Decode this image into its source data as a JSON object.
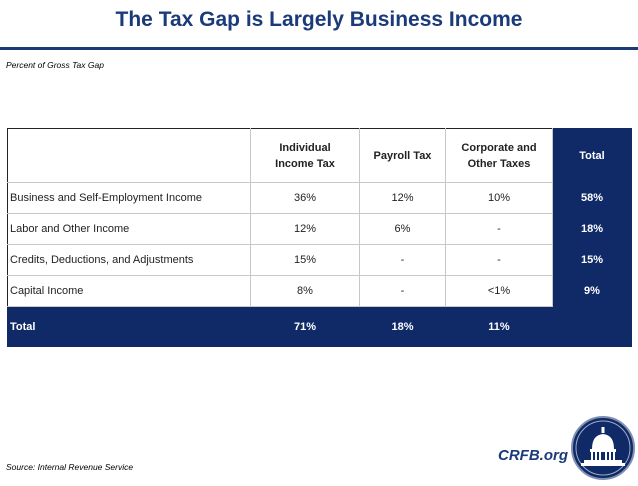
{
  "title": "The Tax Gap is Largely Business Income",
  "subtitle": "Percent of Gross Tax Gap",
  "table": {
    "headers": [
      "",
      "Individual Income Tax",
      "Payroll Tax",
      "Corporate and Other Taxes",
      "Total"
    ],
    "header_lines": {
      "h1a": "Individual",
      "h1b": "Income Tax",
      "h2": "Payroll Tax",
      "h3a": "Corporate and",
      "h3b": "Other Taxes",
      "h4": "Total"
    },
    "rows": [
      {
        "label": "Business and Self-Employment Income",
        "individual": "36%",
        "payroll": "12%",
        "corporate": "10%",
        "total": "58%"
      },
      {
        "label": "Labor and Other Income",
        "individual": "12%",
        "payroll": "6%",
        "corporate": "-",
        "total": "18%"
      },
      {
        "label": "Credits, Deductions, and Adjustments",
        "individual": "15%",
        "payroll": "-",
        "corporate": "-",
        "total": "15%"
      },
      {
        "label": "Capital Income",
        "individual": "8%",
        "payroll": "-",
        "corporate": "<1%",
        "total": "9%"
      }
    ],
    "total_row": {
      "label": "Total",
      "individual": "71%",
      "payroll": "18%",
      "corporate": "11%",
      "total": ""
    }
  },
  "source": "Source: Internal Revenue Service",
  "site": "CRFB.org",
  "colors": {
    "navy": "#0f2a66",
    "title_blue": "#1a3a7a"
  },
  "logo_icon": "capitol-dome-seal-icon"
}
